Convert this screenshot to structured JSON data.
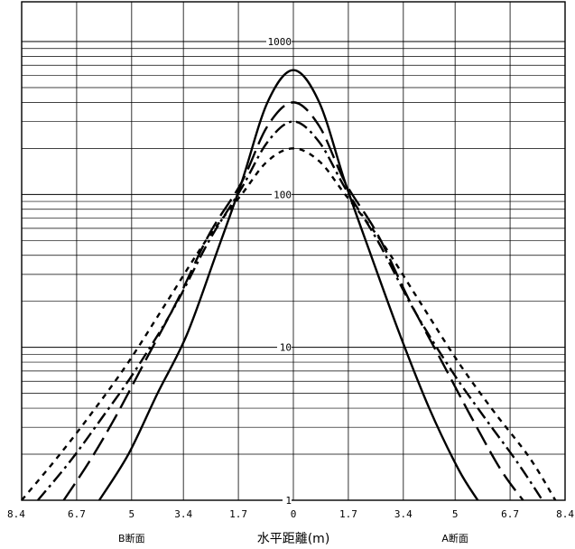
{
  "chart_data": {
    "type": "line",
    "title": "",
    "xlabel": "水平距離(m)",
    "ylabel": "",
    "x_scale": "linear",
    "y_scale": "log",
    "xlim": [
      -8.4,
      8.4
    ],
    "ylim": [
      1,
      1000
    ],
    "grid": true,
    "legend": "none",
    "x_tick_values": [
      -8.4,
      -6.7,
      -5,
      -3.4,
      -1.7,
      0,
      1.7,
      3.4,
      5,
      6.7,
      8.4
    ],
    "x_tick_labels": [
      "8.4",
      "6.7",
      "5",
      "3.4",
      "1.7",
      "0",
      "1.7",
      "3.4",
      "5",
      "6.7",
      "8.4"
    ],
    "y_tick_values": [
      1,
      10,
      100,
      1000
    ],
    "y_tick_labels": [
      "1",
      "10",
      "100",
      "1000"
    ],
    "section_labels": [
      {
        "text": "B断面",
        "x": -5
      },
      {
        "text": "A断面",
        "x": 5
      }
    ],
    "series": [
      {
        "style": "solid",
        "x": [
          -6.0,
          -5.1,
          -4.2,
          -3.3,
          -2.4,
          -1.6,
          -0.8,
          0,
          0.8,
          1.6,
          2.4,
          3.3,
          4.2,
          5.1,
          5.7
        ],
        "y": [
          1,
          2,
          5,
          12,
          40,
          120,
          400,
          650,
          400,
          120,
          40,
          12,
          4,
          1.6,
          1
        ]
      },
      {
        "style": "long-dash",
        "x": [
          -7.1,
          -6.3,
          -5.5,
          -4.6,
          -3.6,
          -2.6,
          -1.6,
          -0.8,
          0,
          0.8,
          1.6,
          2.6,
          3.6,
          4.6,
          5.5,
          6.4,
          7.1
        ],
        "y": [
          1,
          1.8,
          3.5,
          8,
          20,
          55,
          120,
          280,
          400,
          280,
          120,
          55,
          20,
          8,
          3.5,
          1.6,
          1
        ]
      },
      {
        "style": "dash-dot",
        "x": [
          -7.9,
          -6.9,
          -5.9,
          -4.9,
          -3.7,
          -2.6,
          -1.6,
          -0.8,
          0,
          0.8,
          1.6,
          2.6,
          3.7,
          4.9,
          5.9,
          6.9,
          7.7
        ],
        "y": [
          1,
          1.8,
          3.5,
          7,
          18,
          50,
          110,
          220,
          300,
          220,
          110,
          50,
          18,
          7,
          3.5,
          1.8,
          1
        ]
      },
      {
        "style": "short-dash",
        "x": [
          -8.4,
          -7.3,
          -6.2,
          -5.1,
          -3.9,
          -2.7,
          -1.6,
          -0.8,
          0,
          0.8,
          1.6,
          2.7,
          3.9,
          5.1,
          6.2,
          7.3,
          8.1
        ],
        "y": [
          1,
          1.9,
          3.8,
          8,
          20,
          50,
          100,
          165,
          200,
          165,
          100,
          50,
          20,
          8,
          3.8,
          1.9,
          1
        ]
      }
    ]
  }
}
